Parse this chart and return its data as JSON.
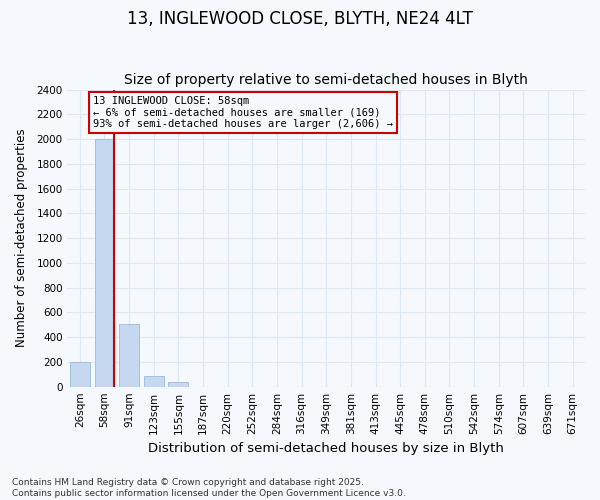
{
  "title1": "13, INGLEWOOD CLOSE, BLYTH, NE24 4LT",
  "title2": "Size of property relative to semi-detached houses in Blyth",
  "xlabel": "Distribution of semi-detached houses by size in Blyth",
  "ylabel": "Number of semi-detached properties",
  "categories": [
    "26sqm",
    "58sqm",
    "91sqm",
    "123sqm",
    "155sqm",
    "187sqm",
    "220sqm",
    "252sqm",
    "284sqm",
    "316sqm",
    "349sqm",
    "381sqm",
    "413sqm",
    "445sqm",
    "478sqm",
    "510sqm",
    "542sqm",
    "574sqm",
    "607sqm",
    "639sqm",
    "671sqm"
  ],
  "values": [
    200,
    2000,
    510,
    90,
    35,
    0,
    0,
    0,
    0,
    0,
    0,
    0,
    0,
    0,
    0,
    0,
    0,
    0,
    0,
    0,
    0
  ],
  "bar_color": "#c5d8f0",
  "bar_edge_color": "#8ab4d8",
  "property_index": 1,
  "property_label": "13 INGLEWOOD CLOSE: 58sqm",
  "annotation_line1": "← 6% of semi-detached houses are smaller (169)",
  "annotation_line2": "93% of semi-detached houses are larger (2,606) →",
  "vline_color": "#cc0000",
  "box_edge_color": "#cc0000",
  "ylim": [
    0,
    2400
  ],
  "yticks": [
    0,
    200,
    400,
    600,
    800,
    1000,
    1200,
    1400,
    1600,
    1800,
    2000,
    2200,
    2400
  ],
  "footnote1": "Contains HM Land Registry data © Crown copyright and database right 2025.",
  "footnote2": "Contains public sector information licensed under the Open Government Licence v3.0.",
  "bg_color": "#f5f8fc",
  "grid_color": "#dce8f5",
  "title1_fontsize": 12,
  "title2_fontsize": 10,
  "xlabel_fontsize": 9.5,
  "ylabel_fontsize": 8.5,
  "tick_fontsize": 7.5,
  "annot_fontsize": 7.5,
  "footnote_fontsize": 6.5
}
